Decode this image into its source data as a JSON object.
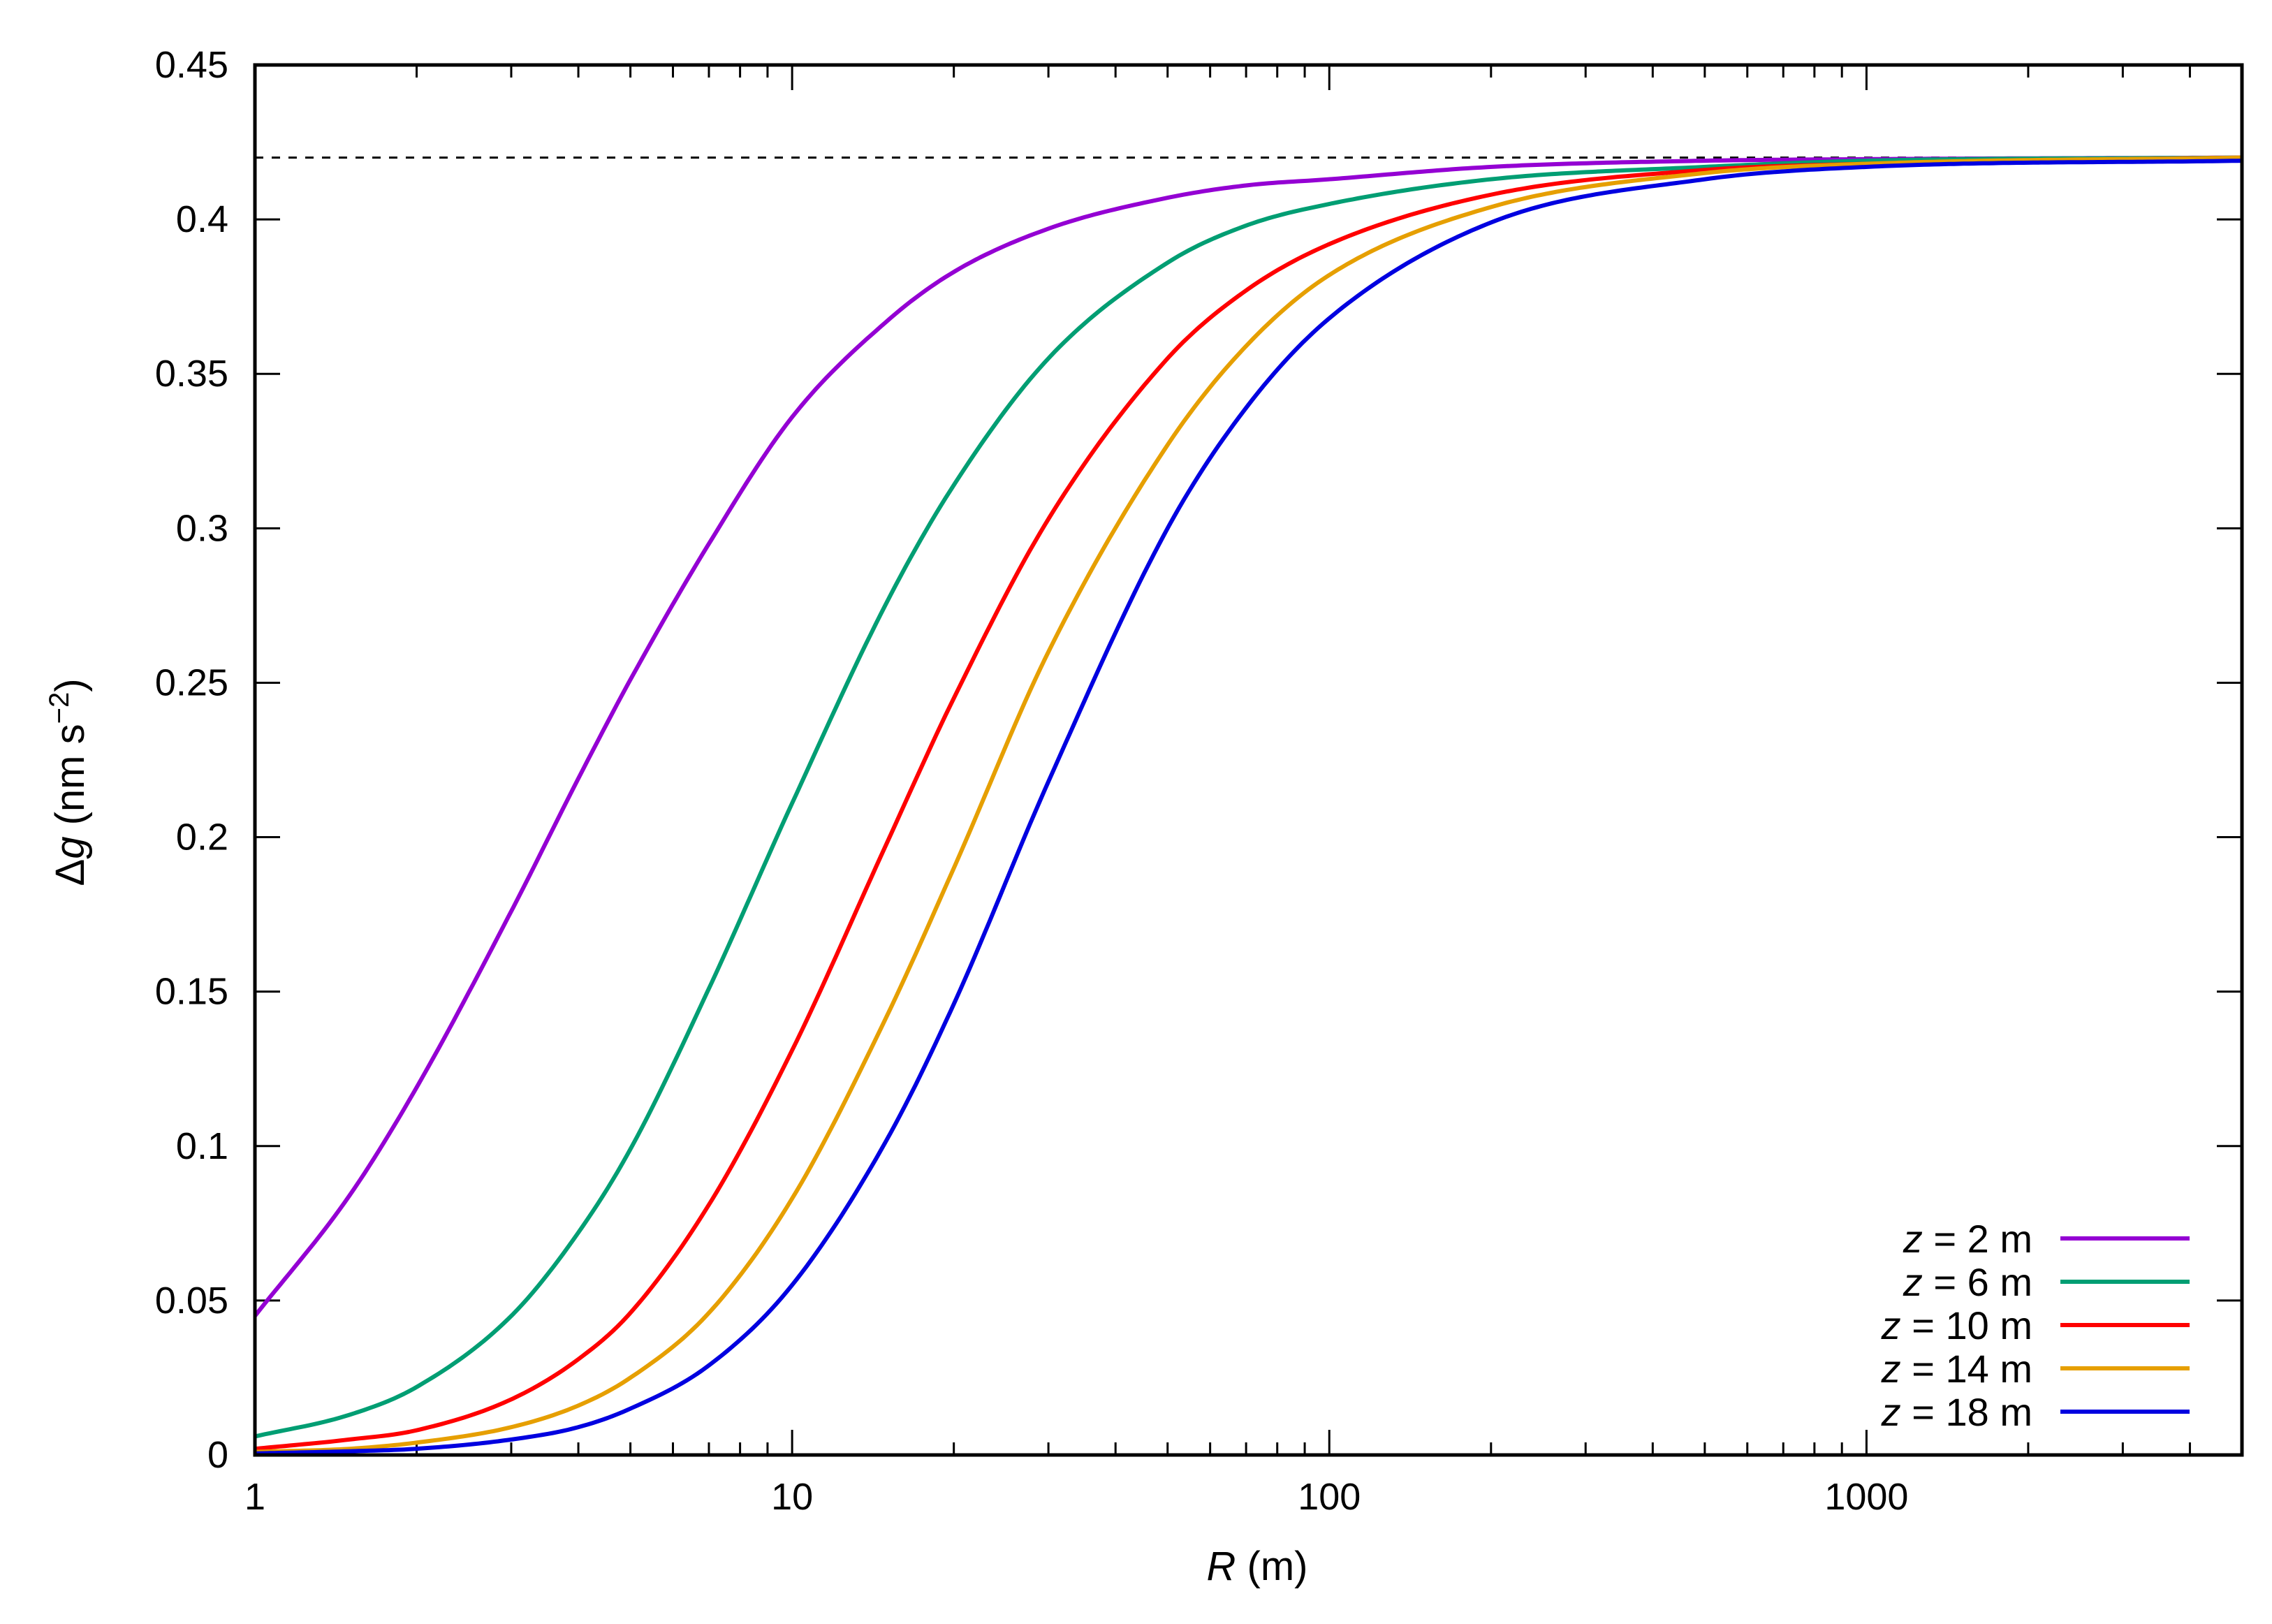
{
  "chart_data": {
    "type": "line",
    "title": "",
    "xlabel": {
      "var": "R",
      "unit": " (m)"
    },
    "ylabel": {
      "prefix": "Δ",
      "var": "g",
      "unit_pre": " (nm s",
      "sup": "−2",
      "unit_post": ")"
    },
    "xscale": "log",
    "xlim": [
      1,
      5000
    ],
    "ylim": [
      0,
      0.45
    ],
    "grid": false,
    "legend_position": "bottom-right",
    "x_ticks": [
      {
        "value": 1,
        "label": "1"
      },
      {
        "value": 10,
        "label": "10"
      },
      {
        "value": 100,
        "label": "100"
      },
      {
        "value": 1000,
        "label": "1000"
      }
    ],
    "y_ticks": [
      {
        "value": 0,
        "label": "0"
      },
      {
        "value": 0.05,
        "label": "0.05"
      },
      {
        "value": 0.1,
        "label": "0.1"
      },
      {
        "value": 0.15,
        "label": "0.15"
      },
      {
        "value": 0.2,
        "label": "0.2"
      },
      {
        "value": 0.25,
        "label": "0.25"
      },
      {
        "value": 0.3,
        "label": "0.3"
      },
      {
        "value": 0.35,
        "label": "0.35"
      },
      {
        "value": 0.4,
        "label": "0.4"
      },
      {
        "value": 0.45,
        "label": "0.45"
      }
    ],
    "reference_line": {
      "y": 0.42,
      "style": "dashed",
      "color": "#000000"
    },
    "series": [
      {
        "name": "z = 2 m",
        "var": "z",
        "rest": " = 2 m",
        "z": 2,
        "color": "#9400D3",
        "x": [
          1,
          1.5,
          2,
          3,
          4,
          5,
          7,
          10,
          15,
          20,
          30,
          50,
          70,
          100,
          200,
          500,
          1000,
          5000
        ],
        "y": [
          0.045,
          0.084,
          0.119,
          0.176,
          0.219,
          0.251,
          0.295,
          0.336,
          0.367,
          0.383,
          0.397,
          0.407,
          0.411,
          0.413,
          0.417,
          0.419,
          0.4195,
          0.42
        ]
      },
      {
        "name": "z = 6 m",
        "var": "z",
        "rest": " = 6 m",
        "z": 6,
        "color": "#009E73",
        "x": [
          1,
          1.5,
          2,
          3,
          4,
          5,
          7,
          10,
          15,
          20,
          30,
          50,
          70,
          100,
          200,
          500,
          1000,
          5000
        ],
        "y": [
          0.006,
          0.013,
          0.022,
          0.045,
          0.072,
          0.099,
          0.151,
          0.211,
          0.276,
          0.314,
          0.355,
          0.386,
          0.398,
          0.405,
          0.413,
          0.417,
          0.419,
          0.42
        ]
      },
      {
        "name": "z = 10 m",
        "var": "z",
        "rest": " = 10 m",
        "z": 10,
        "color": "#FF0000",
        "x": [
          1,
          1.5,
          2,
          3,
          4,
          5,
          7,
          10,
          15,
          20,
          30,
          50,
          70,
          100,
          200,
          500,
          1000,
          5000
        ],
        "y": [
          0.002,
          0.005,
          0.008,
          0.018,
          0.031,
          0.046,
          0.081,
          0.131,
          0.198,
          0.245,
          0.303,
          0.355,
          0.377,
          0.392,
          0.408,
          0.416,
          0.418,
          0.42
        ]
      },
      {
        "name": "z = 14 m",
        "var": "z",
        "rest": " = 14 m",
        "z": 14,
        "color": "#E69F00",
        "x": [
          1,
          1.5,
          2,
          3,
          4,
          5,
          7,
          10,
          15,
          20,
          30,
          50,
          70,
          100,
          200,
          500,
          1000,
          5000
        ],
        "y": [
          0.001,
          0.002,
          0.004,
          0.009,
          0.016,
          0.025,
          0.046,
          0.083,
          0.142,
          0.19,
          0.26,
          0.327,
          0.359,
          0.382,
          0.404,
          0.415,
          0.418,
          0.42
        ]
      },
      {
        "name": "z = 18 m",
        "var": "z",
        "rest": " = 18 m",
        "z": 18,
        "color": "#0000E0",
        "x": [
          1,
          1.5,
          2,
          3,
          4,
          5,
          7,
          10,
          15,
          20,
          30,
          50,
          70,
          100,
          200,
          500,
          1000,
          5000
        ],
        "y": [
          0.0005,
          0.0012,
          0.002,
          0.005,
          0.009,
          0.015,
          0.029,
          0.055,
          0.102,
          0.146,
          0.218,
          0.3,
          0.339,
          0.368,
          0.399,
          0.413,
          0.417,
          0.419
        ]
      }
    ]
  }
}
